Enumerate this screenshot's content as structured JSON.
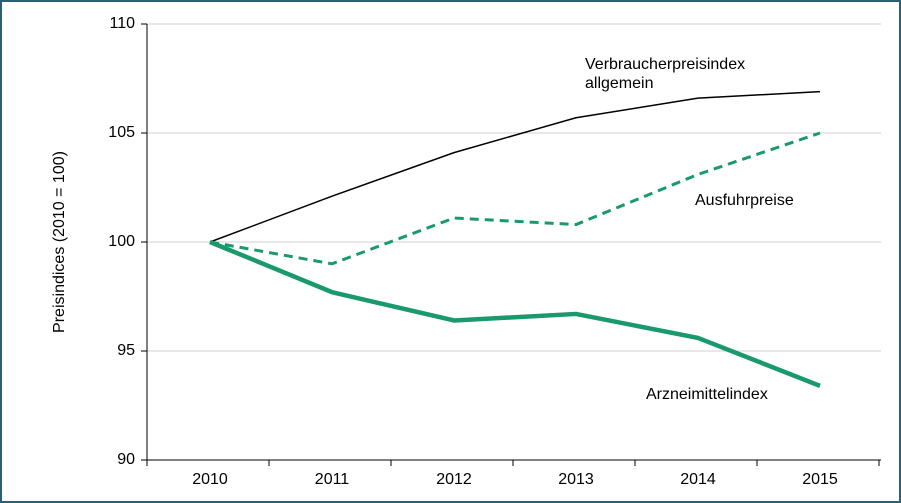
{
  "chart_data": {
    "type": "line",
    "y_label": "Preisindices (2010 = 100)",
    "categories": [
      "2010",
      "2011",
      "2012",
      "2013",
      "2014",
      "2015"
    ],
    "series": [
      {
        "name": "Verbraucherpreisindex allgemein",
        "color": "#000000",
        "line_style": "solid",
        "line_width": 1.5,
        "values": [
          100,
          102.1,
          104.1,
          105.7,
          106.6,
          106.9
        ]
      },
      {
        "name": "Ausfuhrpreise",
        "color": "#1a9a6c",
        "line_style": "dashed",
        "line_width": 3,
        "values": [
          100,
          99.0,
          101.1,
          100.8,
          103.1,
          105.0
        ]
      },
      {
        "name": "Arzneimittelindex",
        "color": "#1a9a6c",
        "line_style": "solid",
        "line_width": 4.5,
        "values": [
          100,
          97.7,
          96.4,
          96.7,
          95.6,
          93.4
        ]
      }
    ],
    "ylim": [
      90,
      110
    ],
    "yticks": [
      90,
      95,
      100,
      105,
      110
    ],
    "grid": true
  }
}
